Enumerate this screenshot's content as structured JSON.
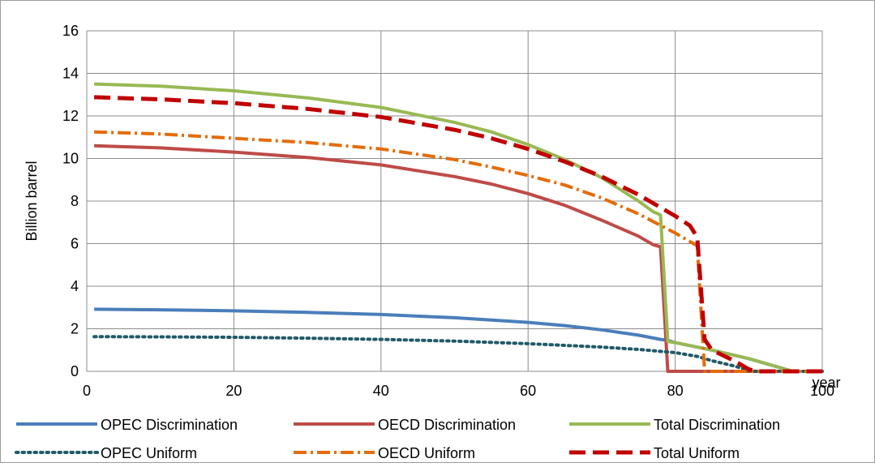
{
  "chart_data": {
    "type": "line",
    "title": "",
    "xlabel": "year",
    "ylabel": "Billion barrel",
    "xlim": [
      0,
      100
    ],
    "ylim": [
      0,
      16
    ],
    "x_ticks": [
      "0",
      "20",
      "40",
      "60",
      "80",
      "100"
    ],
    "y_ticks": [
      "0",
      "2",
      "4",
      "6",
      "8",
      "10",
      "12",
      "14",
      "16"
    ],
    "grid": true,
    "legend_position": "bottom",
    "series": [
      {
        "name": "OPEC Discrimination",
        "color": "#4a7ebb",
        "style": "solid",
        "points": [
          [
            1,
            2.92
          ],
          [
            10,
            2.89
          ],
          [
            20,
            2.84
          ],
          [
            30,
            2.77
          ],
          [
            40,
            2.67
          ],
          [
            50,
            2.52
          ],
          [
            60,
            2.3
          ],
          [
            65,
            2.15
          ],
          [
            70,
            1.95
          ],
          [
            75,
            1.7
          ],
          [
            78,
            1.5
          ],
          [
            79,
            1.45
          ],
          [
            80,
            1.35
          ],
          [
            85,
            1.0
          ],
          [
            90,
            0.6
          ],
          [
            95,
            0.1
          ],
          [
            96,
            0.0
          ],
          [
            100,
            0.0
          ]
        ]
      },
      {
        "name": "OECD Discrimination",
        "color": "#be4b48",
        "style": "solid",
        "points": [
          [
            1,
            10.6
          ],
          [
            10,
            10.5
          ],
          [
            20,
            10.3
          ],
          [
            30,
            10.05
          ],
          [
            40,
            9.7
          ],
          [
            50,
            9.15
          ],
          [
            55,
            8.8
          ],
          [
            60,
            8.35
          ],
          [
            65,
            7.8
          ],
          [
            70,
            7.1
          ],
          [
            75,
            6.35
          ],
          [
            77,
            5.95
          ],
          [
            78,
            5.85
          ],
          [
            79,
            0.0
          ],
          [
            100,
            0.0
          ]
        ]
      },
      {
        "name": "Total Discrimination",
        "color": "#98b954",
        "style": "solid",
        "points": [
          [
            1,
            13.5
          ],
          [
            10,
            13.4
          ],
          [
            20,
            13.18
          ],
          [
            30,
            12.85
          ],
          [
            40,
            12.4
          ],
          [
            50,
            11.7
          ],
          [
            55,
            11.25
          ],
          [
            60,
            10.65
          ],
          [
            65,
            9.95
          ],
          [
            70,
            9.1
          ],
          [
            75,
            8.0
          ],
          [
            77,
            7.5
          ],
          [
            78,
            7.35
          ],
          [
            79,
            1.4
          ],
          [
            80,
            1.35
          ],
          [
            85,
            1.0
          ],
          [
            90,
            0.6
          ],
          [
            95,
            0.1
          ],
          [
            96,
            0.0
          ],
          [
            100,
            0.0
          ]
        ]
      },
      {
        "name": "OPEC Uniform",
        "color": "#215968",
        "style": "dotted",
        "points": [
          [
            1,
            1.63
          ],
          [
            10,
            1.62
          ],
          [
            20,
            1.6
          ],
          [
            30,
            1.56
          ],
          [
            40,
            1.5
          ],
          [
            50,
            1.42
          ],
          [
            60,
            1.3
          ],
          [
            70,
            1.14
          ],
          [
            75,
            1.03
          ],
          [
            80,
            0.88
          ],
          [
            83,
            0.7
          ],
          [
            85,
            0.5
          ],
          [
            88,
            0.25
          ],
          [
            90,
            0.05
          ],
          [
            91,
            0.0
          ],
          [
            100,
            0.0
          ]
        ]
      },
      {
        "name": "OECD Uniform",
        "color": "#e46c0a",
        "style": "dashdot",
        "points": [
          [
            1,
            11.25
          ],
          [
            10,
            11.15
          ],
          [
            20,
            10.95
          ],
          [
            30,
            10.75
          ],
          [
            40,
            10.45
          ],
          [
            50,
            9.95
          ],
          [
            55,
            9.6
          ],
          [
            60,
            9.2
          ],
          [
            65,
            8.75
          ],
          [
            70,
            8.15
          ],
          [
            75,
            7.4
          ],
          [
            80,
            6.5
          ],
          [
            83,
            5.9
          ],
          [
            84,
            0.0
          ],
          [
            100,
            0.0
          ]
        ]
      },
      {
        "name": "Total Uniform",
        "color": "#c00000",
        "style": "dashed",
        "points": [
          [
            1,
            12.88
          ],
          [
            10,
            12.78
          ],
          [
            20,
            12.6
          ],
          [
            30,
            12.33
          ],
          [
            40,
            11.95
          ],
          [
            50,
            11.35
          ],
          [
            55,
            10.95
          ],
          [
            60,
            10.45
          ],
          [
            65,
            9.85
          ],
          [
            70,
            9.15
          ],
          [
            75,
            8.3
          ],
          [
            80,
            7.3
          ],
          [
            82,
            6.85
          ],
          [
            83,
            6.3
          ],
          [
            84,
            1.5
          ],
          [
            85,
            1.0
          ],
          [
            88,
            0.5
          ],
          [
            90,
            0.1
          ],
          [
            91,
            0.0
          ],
          [
            100,
            0.0
          ]
        ]
      }
    ]
  }
}
